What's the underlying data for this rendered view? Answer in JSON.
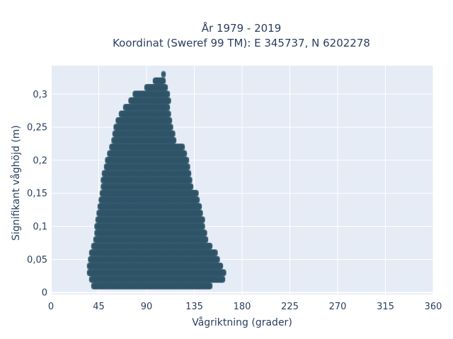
{
  "chart_data": {
    "type": "scatter",
    "title_lines": [
      "År 1979 - 2019",
      "Koordinat (Sweref 99 TM): E 345737, N 6202278"
    ],
    "xlabel": "Vågriktning (grader)",
    "ylabel": "Signifikant våghöjd (m)",
    "xlim": [
      0,
      360
    ],
    "ylim": [
      -0.003,
      0.343
    ],
    "xticks": [
      0,
      45,
      90,
      135,
      180,
      225,
      270,
      315,
      360
    ],
    "xtick_labels": [
      "0",
      "45",
      "90",
      "135",
      "180",
      "225",
      "270",
      "315",
      "360"
    ],
    "yticks": [
      0,
      0.05,
      0.1,
      0.15,
      0.2,
      0.25,
      0.3
    ],
    "ytick_labels": [
      "0",
      "0,05",
      "0,1",
      "0,15",
      "0,2",
      "0,25",
      "0,3"
    ],
    "grid": true,
    "marker_color": "#2f5468",
    "background": "#e5ecf6",
    "envelope": [
      {
        "y": 0.01,
        "xmin": 40,
        "xmax": 150
      },
      {
        "y": 0.02,
        "xmin": 38,
        "xmax": 162
      },
      {
        "y": 0.03,
        "xmin": 36,
        "xmax": 163
      },
      {
        "y": 0.04,
        "xmin": 36,
        "xmax": 160
      },
      {
        "y": 0.05,
        "xmin": 37,
        "xmax": 157
      },
      {
        "y": 0.06,
        "xmin": 38,
        "xmax": 155
      },
      {
        "y": 0.07,
        "xmin": 40,
        "xmax": 150
      },
      {
        "y": 0.08,
        "xmin": 42,
        "xmax": 146
      },
      {
        "y": 0.09,
        "xmin": 43,
        "xmax": 145
      },
      {
        "y": 0.1,
        "xmin": 43,
        "xmax": 143
      },
      {
        "y": 0.11,
        "xmin": 44,
        "xmax": 143
      },
      {
        "y": 0.12,
        "xmin": 45,
        "xmax": 141
      },
      {
        "y": 0.13,
        "xmin": 46,
        "xmax": 140
      },
      {
        "y": 0.14,
        "xmin": 47,
        "xmax": 138
      },
      {
        "y": 0.15,
        "xmin": 48,
        "xmax": 137
      },
      {
        "y": 0.16,
        "xmin": 49,
        "xmax": 132
      },
      {
        "y": 0.17,
        "xmin": 49,
        "xmax": 131
      },
      {
        "y": 0.18,
        "xmin": 50,
        "xmax": 130
      },
      {
        "y": 0.19,
        "xmin": 52,
        "xmax": 129
      },
      {
        "y": 0.2,
        "xmin": 53,
        "xmax": 128
      },
      {
        "y": 0.21,
        "xmin": 55,
        "xmax": 126
      },
      {
        "y": 0.22,
        "xmin": 57,
        "xmax": 124
      },
      {
        "y": 0.23,
        "xmin": 59,
        "xmax": 116
      },
      {
        "y": 0.24,
        "xmin": 60,
        "xmax": 115
      },
      {
        "y": 0.25,
        "xmin": 61,
        "xmax": 113
      },
      {
        "y": 0.26,
        "xmin": 63,
        "xmax": 112
      },
      {
        "y": 0.27,
        "xmin": 66,
        "xmax": 111
      },
      {
        "y": 0.28,
        "xmin": 70,
        "xmax": 110
      },
      {
        "y": 0.29,
        "xmin": 75,
        "xmax": 111
      },
      {
        "y": 0.3,
        "xmin": 79,
        "xmax": 110
      },
      {
        "y": 0.31,
        "xmin": 90,
        "xmax": 108
      },
      {
        "y": 0.32,
        "xmin": 98,
        "xmax": 106
      },
      {
        "y": 0.33,
        "xmin": 106,
        "xmax": 106
      }
    ]
  }
}
